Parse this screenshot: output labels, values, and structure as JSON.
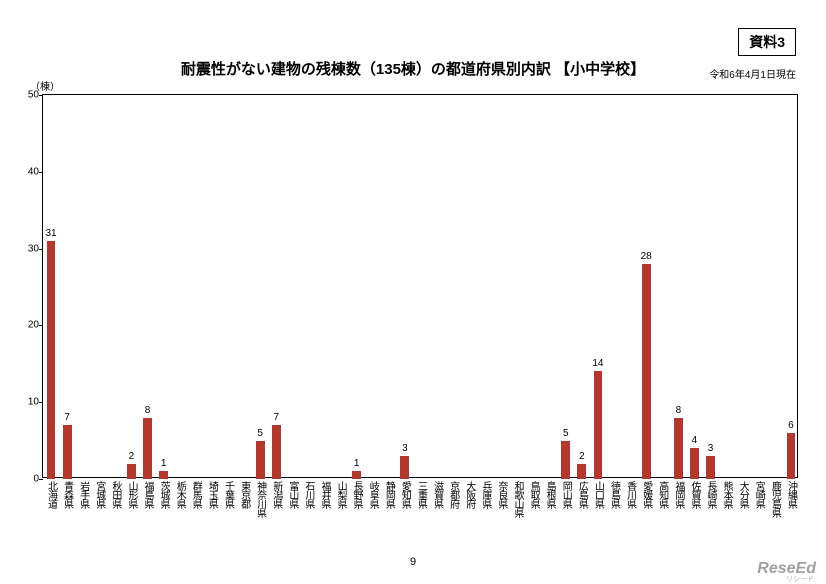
{
  "doc_tag": "資料3",
  "title": "耐震性がない建物の残棟数（135棟）の都道府県別内訳 【小中学校】",
  "asof": "令和6年4月1日現在",
  "y_unit_label": "（棟）",
  "page_number": "9",
  "watermark": "ReseEd",
  "watermark_sub": "リシード",
  "chart": {
    "type": "bar",
    "ylim": [
      0,
      50
    ],
    "ytick_step": 10,
    "yticks": [
      0,
      10,
      20,
      30,
      40,
      50
    ],
    "bar_color": "#b5362a",
    "background_color": "#ffffff",
    "axis_color": "#000000",
    "bar_width_ratio": 0.55,
    "label_fontsize": 10,
    "title_fontsize": 15,
    "categories": [
      "北海道",
      "青森県",
      "岩手県",
      "宮城県",
      "秋田県",
      "山形県",
      "福島県",
      "茨城県",
      "栃木県",
      "群馬県",
      "埼玉県",
      "千葉県",
      "東京都",
      "神奈川県",
      "新潟県",
      "富山県",
      "石川県",
      "福井県",
      "山梨県",
      "長野県",
      "岐阜県",
      "静岡県",
      "愛知県",
      "三重県",
      "滋賀県",
      "京都府",
      "大阪府",
      "兵庫県",
      "奈良県",
      "和歌山県",
      "鳥取県",
      "島根県",
      "岡山県",
      "広島県",
      "山口県",
      "徳島県",
      "香川県",
      "愛媛県",
      "高知県",
      "福岡県",
      "佐賀県",
      "長崎県",
      "熊本県",
      "大分県",
      "宮崎県",
      "鹿児島県",
      "沖縄県"
    ],
    "values": [
      31,
      7,
      0,
      0,
      0,
      2,
      8,
      1,
      0,
      0,
      0,
      0,
      0,
      5,
      7,
      0,
      0,
      0,
      0,
      1,
      0,
      0,
      3,
      0,
      0,
      0,
      0,
      0,
      0,
      0,
      0,
      0,
      5,
      2,
      14,
      0,
      0,
      28,
      0,
      8,
      4,
      3,
      0,
      0,
      0,
      0,
      6
    ]
  }
}
